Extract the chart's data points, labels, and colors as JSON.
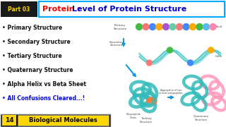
{
  "title_part1": "Protein : ",
  "title_part2": "Level of Protein Structure",
  "title_color1": "#FF0000",
  "title_color2": "#0000CC",
  "bg_color": "#FFFFFF",
  "border_color": "#00AAFF",
  "bullet_items": [
    "Primary Structure",
    "Secondary Structure",
    "Tertiary Structure",
    "Quaternary Structure",
    "Alpha Helix vs Beta Sheet",
    "All Confusions Cleared...!"
  ],
  "bullet_colors": [
    "#111111",
    "#111111",
    "#111111",
    "#111111",
    "#111111",
    "#0000EE"
  ],
  "part_box_color": "#1A1A1A",
  "part_text": "Part 03",
  "part_text_color": "#FFD700",
  "bottom_box_color": "#000000",
  "bottom_num": "14",
  "bottom_num_color": "#FFD700",
  "bottom_label": "Biological Molecules",
  "bottom_label_bg": "#FFD700",
  "bottom_label_color": "#000000",
  "arrow_color": "#1199DD",
  "amino_colors": [
    "#44BB44",
    "#FF6666",
    "#4499FF",
    "#FFAA00",
    "#AA44CC",
    "#66CC99",
    "#FF6666",
    "#4499FF",
    "#FFAA00",
    "#44BB44",
    "#66CCEE",
    "#FF99AA"
  ],
  "helix_ribbon_color": "#55CCCC",
  "tertiary_color": "#33BBBB",
  "quaternary_color1": "#33BBBB",
  "quaternary_color2": "#FF99BB",
  "label_color": "#555555",
  "struct_label_color": "#444444"
}
